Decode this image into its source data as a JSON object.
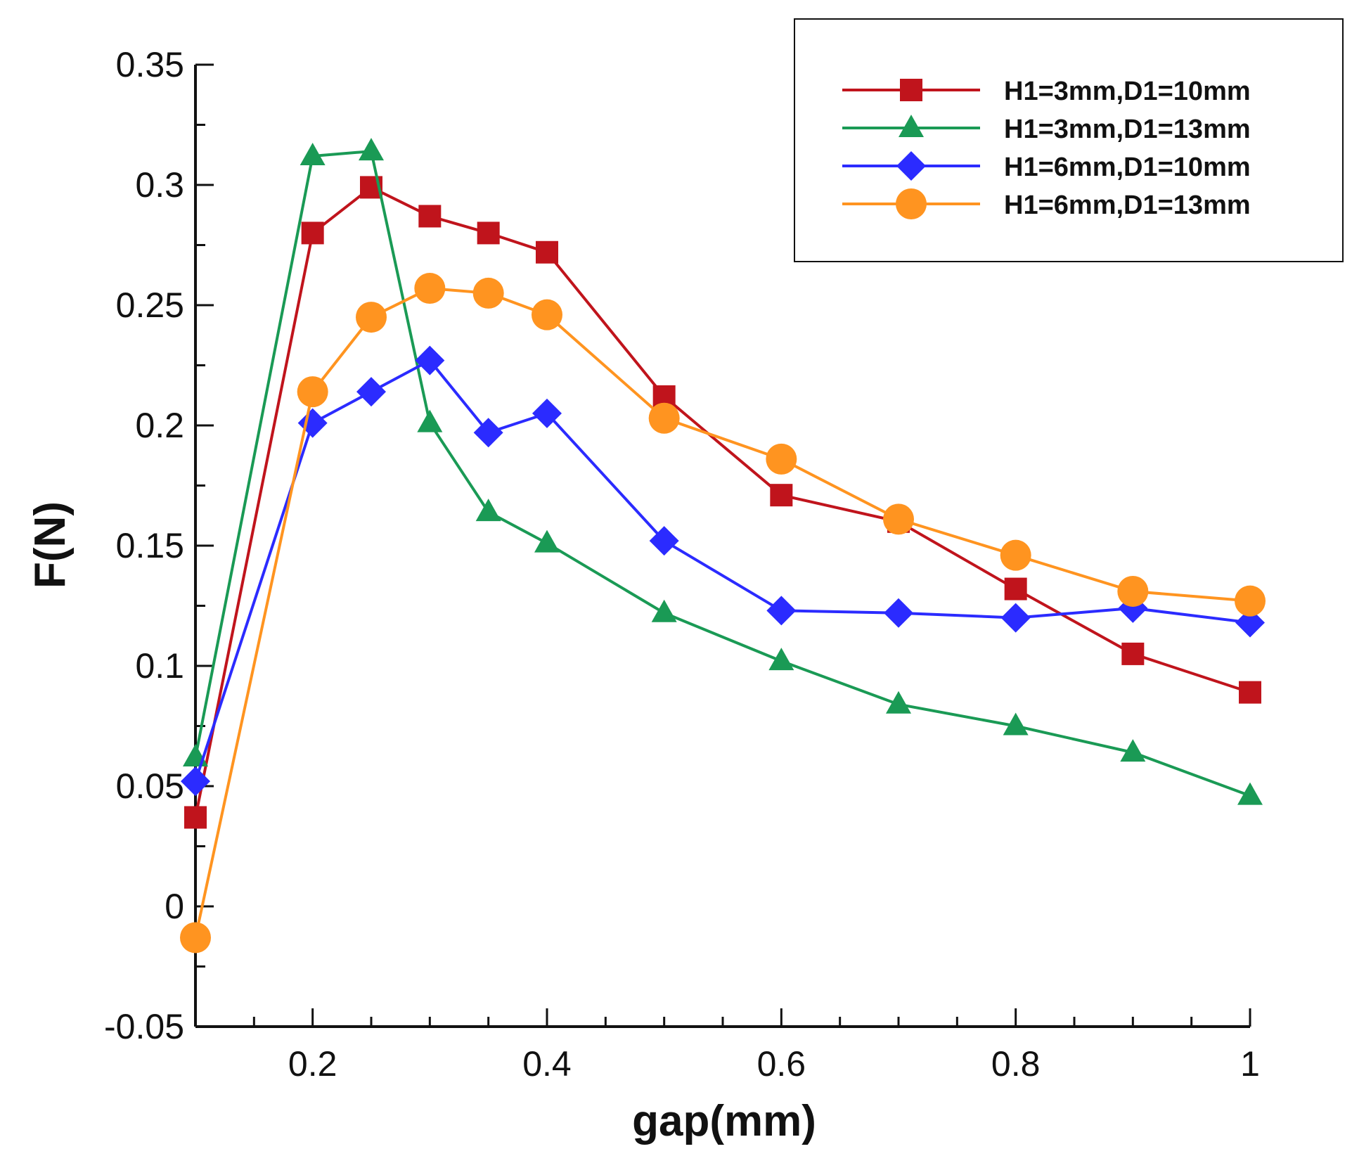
{
  "chart_data": {
    "type": "line",
    "xlabel": "gap(mm)",
    "ylabel": "F(N)",
    "xlim": [
      0.1,
      1.0
    ],
    "ylim": [
      -0.05,
      0.35
    ],
    "x_ticks": [
      0.2,
      0.4,
      0.6,
      0.8,
      1.0
    ],
    "x_tick_labels": [
      "0.2",
      "0.4",
      "0.6",
      "0.8",
      "1"
    ],
    "y_ticks": [
      -0.05,
      0,
      0.05,
      0.1,
      0.15,
      0.2,
      0.25,
      0.3,
      0.35
    ],
    "y_tick_labels": [
      "-0.05",
      "0",
      "0.05",
      "0.1",
      "0.15",
      "0.2",
      "0.25",
      "0.3",
      "0.35"
    ],
    "grid": false,
    "legend_position": "top-right",
    "x": [
      0.1,
      0.2,
      0.25,
      0.3,
      0.35,
      0.4,
      0.5,
      0.6,
      0.7,
      0.8,
      0.9,
      1.0
    ],
    "series": [
      {
        "name": "H1=3mm,D1=10mm",
        "color": "#c0141c",
        "marker": "square",
        "values": [
          0.037,
          0.28,
          0.299,
          0.287,
          0.28,
          0.272,
          0.212,
          0.171,
          0.16,
          0.132,
          0.105,
          0.089
        ]
      },
      {
        "name": "H1=3mm,D1=13mm",
        "color": "#1a9a55",
        "marker": "triangle",
        "values": [
          0.062,
          0.312,
          0.314,
          0.201,
          0.164,
          0.151,
          0.122,
          0.102,
          0.084,
          0.075,
          0.064,
          0.046
        ]
      },
      {
        "name": "H1=6mm,D1=10mm",
        "color": "#2b2bff",
        "marker": "diamond",
        "values": [
          0.052,
          0.201,
          0.214,
          0.227,
          0.197,
          0.205,
          0.152,
          0.123,
          0.122,
          0.12,
          0.124,
          0.118
        ]
      },
      {
        "name": "H1=6mm,D1=13mm",
        "color": "#ff9420",
        "marker": "circle",
        "values": [
          -0.013,
          0.214,
          0.245,
          0.257,
          0.255,
          0.246,
          0.203,
          0.186,
          0.161,
          0.146,
          0.131,
          0.127
        ]
      }
    ]
  }
}
